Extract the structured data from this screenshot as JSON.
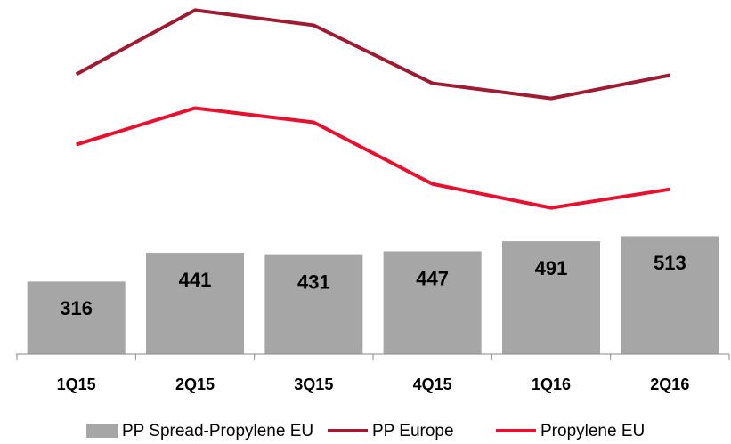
{
  "chart_data": {
    "type": "bar_line",
    "categories": [
      "1Q15",
      "2Q15",
      "3Q15",
      "4Q15",
      "1Q16",
      "2Q16"
    ],
    "series": [
      {
        "name": "PP Spread-Propylene EU",
        "type": "bar",
        "color": "#a6a6a6",
        "values": [
          316,
          441,
          431,
          447,
          491,
          513
        ]
      },
      {
        "name": "PP Europe",
        "type": "line",
        "color": "#9e1b32",
        "values": [
          1217,
          1496,
          1430,
          1178,
          1112,
          1213
        ]
      },
      {
        "name": "Propylene EU",
        "type": "line",
        "color": "#e8102f",
        "values": [
          911,
          1070,
          1008,
          740,
          636,
          717
        ]
      }
    ],
    "ylim": [
      0,
      1540
    ],
    "legend": "bottom"
  }
}
